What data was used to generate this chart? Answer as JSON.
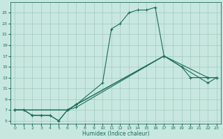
{
  "xlabel": "Humidex (Indice chaleur)",
  "background_color": "#c8e8df",
  "grid_color": "#a0c8c0",
  "line_color": "#1a6b5a",
  "xlim": [
    -0.5,
    23.5
  ],
  "ylim": [
    4.5,
    27
  ],
  "xticks": [
    0,
    1,
    2,
    3,
    4,
    5,
    6,
    7,
    8,
    9,
    10,
    11,
    12,
    13,
    14,
    15,
    16,
    17,
    18,
    19,
    20,
    21,
    22,
    23
  ],
  "yticks": [
    5,
    7,
    9,
    11,
    13,
    15,
    17,
    19,
    21,
    23,
    25
  ],
  "s1x": [
    0,
    1,
    2,
    3,
    4,
    5,
    6,
    7,
    10,
    11,
    12,
    13,
    14,
    15,
    16,
    17
  ],
  "s1y": [
    7,
    7,
    6,
    6,
    6,
    5,
    7,
    8,
    12,
    22,
    23,
    25,
    25.5,
    25.5,
    26,
    17
  ],
  "s2x": [
    0,
    1,
    2,
    3,
    4,
    5,
    6,
    7,
    17,
    19,
    20,
    22,
    23
  ],
  "s2y": [
    7,
    7,
    6,
    6,
    6,
    5,
    7,
    8,
    17,
    15,
    13,
    13,
    13
  ],
  "s3x": [
    0,
    6,
    7,
    17,
    22,
    23
  ],
  "s3y": [
    7,
    7,
    8,
    17,
    13,
    13
  ],
  "s4x": [
    0,
    6,
    7,
    17,
    22,
    23
  ],
  "s4y": [
    7,
    7,
    7.5,
    17,
    12,
    13
  ]
}
